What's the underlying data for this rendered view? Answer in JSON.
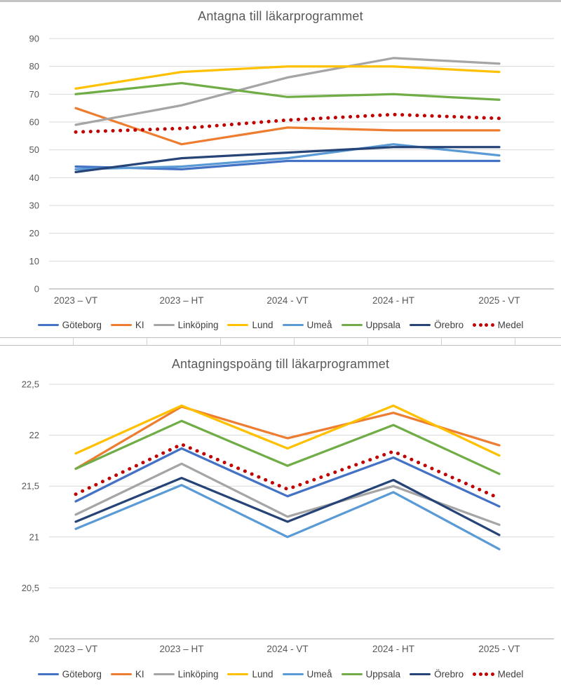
{
  "chart_data": [
    {
      "type": "line",
      "title": "Antagna till läkarprogrammet",
      "categories": [
        "2023 – VT",
        "2023 – HT",
        "2024 - VT",
        "2024 - HT",
        "2025 - VT"
      ],
      "y_axis": {
        "min": 0,
        "max": 90,
        "step": 10,
        "tick_labels": [
          "0",
          "10",
          "20",
          "30",
          "40",
          "50",
          "60",
          "70",
          "80",
          "90"
        ]
      },
      "grid": true,
      "legend_position": "bottom",
      "series": [
        {
          "name": "Göteborg",
          "color": "#4472C4",
          "style": "solid",
          "values": [
            44,
            43,
            46,
            46,
            46
          ]
        },
        {
          "name": "KI",
          "color": "#ED7D31",
          "style": "solid",
          "values": [
            65,
            52,
            58,
            57,
            57
          ]
        },
        {
          "name": "Linköping",
          "color": "#A5A5A5",
          "style": "solid",
          "values": [
            59,
            66,
            76,
            83,
            81
          ]
        },
        {
          "name": "Lund",
          "color": "#FFC000",
          "style": "solid",
          "values": [
            72,
            78,
            80,
            80,
            78
          ]
        },
        {
          "name": "Umeå",
          "color": "#5B9BD5",
          "style": "solid",
          "values": [
            43,
            44,
            47,
            52,
            48
          ]
        },
        {
          "name": "Uppsala",
          "color": "#70AD47",
          "style": "solid",
          "values": [
            70,
            74,
            69,
            70,
            68
          ]
        },
        {
          "name": "Örebro",
          "color": "#264478",
          "style": "solid",
          "values": [
            42,
            47,
            49,
            51,
            51
          ]
        },
        {
          "name": "Medel",
          "color": "#C00000",
          "style": "dotted",
          "values": [
            56.4,
            57.7,
            60.7,
            62.7,
            61.3
          ]
        }
      ]
    },
    {
      "type": "line",
      "title": "Antagningspoäng till läkarprogrammet",
      "categories": [
        "2023 – VT",
        "2023 – HT",
        "2024 - VT",
        "2024 - HT",
        "2025 - VT"
      ],
      "y_axis": {
        "min": 20,
        "max": 22.5,
        "step": 0.5,
        "tick_labels": [
          "20",
          "20,5",
          "21",
          "21,5",
          "22",
          "22,5"
        ]
      },
      "grid": true,
      "legend_position": "bottom",
      "series": [
        {
          "name": "Göteborg",
          "color": "#4472C4",
          "style": "solid",
          "values": [
            21.35,
            21.87,
            21.4,
            21.78,
            21.3
          ]
        },
        {
          "name": "KI",
          "color": "#ED7D31",
          "style": "solid",
          "values": [
            21.67,
            22.28,
            21.97,
            22.22,
            21.9
          ]
        },
        {
          "name": "Linköping",
          "color": "#A5A5A5",
          "style": "solid",
          "values": [
            21.22,
            21.72,
            21.2,
            21.5,
            21.12
          ]
        },
        {
          "name": "Lund",
          "color": "#FFC000",
          "style": "solid",
          "values": [
            21.82,
            22.29,
            21.87,
            22.29,
            21.8
          ]
        },
        {
          "name": "Umeå",
          "color": "#5B9BD5",
          "style": "solid",
          "values": [
            21.08,
            21.51,
            21.0,
            21.44,
            20.88
          ]
        },
        {
          "name": "Uppsala",
          "color": "#70AD47",
          "style": "solid",
          "values": [
            21.67,
            22.14,
            21.7,
            22.1,
            21.62
          ]
        },
        {
          "name": "Örebro",
          "color": "#264478",
          "style": "solid",
          "values": [
            21.15,
            21.58,
            21.15,
            21.56,
            21.02
          ]
        },
        {
          "name": "Medel",
          "color": "#C00000",
          "style": "dotted",
          "values": [
            21.42,
            21.91,
            21.47,
            21.84,
            21.38
          ]
        }
      ]
    }
  ],
  "colors": {
    "grid_line": "#d9d9d9",
    "axis_line": "#bfbfbf",
    "axis_text": "#595959",
    "title_text": "#595959",
    "legend_text": "#3f3f3f"
  }
}
